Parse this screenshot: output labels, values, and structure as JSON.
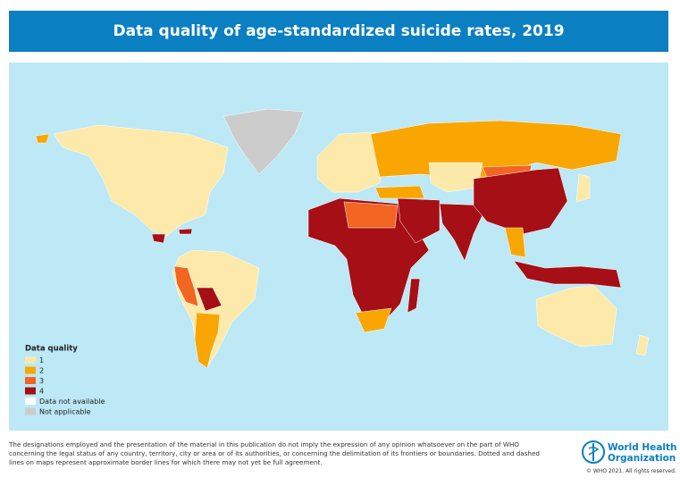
{
  "title": "Data quality of age-standardized suicide rates, 2019",
  "legend": {
    "title": "Data quality",
    "items": [
      {
        "label": "1",
        "color": "#fde9a9"
      },
      {
        "label": "2",
        "color": "#f9a602"
      },
      {
        "label": "3",
        "color": "#f26522"
      },
      {
        "label": "4",
        "color": "#a50f15"
      },
      {
        "label": "Data not available",
        "color": "#ffffff"
      },
      {
        "label": "Not applicable",
        "color": "#cccccc"
      }
    ]
  },
  "disclaimer": "The designations employed and the presentation of the material in this publication do not imply the expression of any opinion whatsoever on the part of WHO concerning the legal status of any country, territory, city or area or of its authorities, or concerning the delimitation of its frontiers or boundaries. Dotted and dashed lines on maps represent approximate border lines for which there may not yet be full agreement.",
  "organization": {
    "line1": "World Health",
    "line2": "Organization"
  },
  "copyright": "© WHO 2021. All rights reserved."
}
